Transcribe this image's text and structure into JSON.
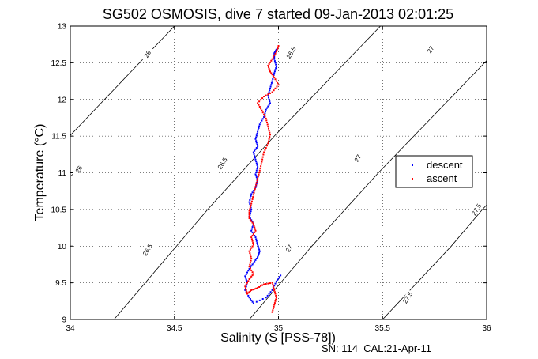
{
  "chart_data": {
    "type": "scatter",
    "title": "SG502 OSMOSIS, dive 7 started 09-Jan-2013 02:01:25",
    "xlabel": "Salinity (S [PSS-78])",
    "ylabel": "Temperature (°C)",
    "xlim": [
      34,
      36
    ],
    "ylim": [
      9,
      13
    ],
    "xticks": [
      34,
      34.5,
      35,
      35.5,
      36
    ],
    "xtick_labels": [
      "34",
      "34.5",
      "35",
      "35.5",
      "36"
    ],
    "yticks": [
      9,
      9.5,
      10,
      10.5,
      11,
      11.5,
      12,
      12.5,
      13
    ],
    "ytick_labels": [
      "9",
      "9.5",
      "10",
      "10.5",
      "11",
      "11.5",
      "12",
      "12.5",
      "13"
    ],
    "grid": true,
    "legend_position": "right",
    "footer": "SN: 114  CAL:21-Apr-11",
    "isopycnals": [
      {
        "label": "26",
        "points": [
          [
            34.0,
            11.51
          ],
          [
            34.5,
            13.0
          ]
        ],
        "label_at": [
          34.37,
          12.62
        ]
      },
      {
        "label": "26",
        "points": [
          [
            34.0,
            10.95
          ],
          [
            34.02,
            11.0
          ]
        ],
        "label_at": [
          34.04,
          11.05
        ]
      },
      {
        "label": "26.5",
        "points": [
          [
            34.21,
            9.0
          ],
          [
            34.51,
            10.0
          ],
          [
            34.66,
            10.5
          ],
          [
            34.82,
            11.0
          ],
          [
            34.98,
            11.5
          ],
          [
            35.15,
            12.0
          ],
          [
            35.32,
            12.5
          ],
          [
            35.49,
            13.0
          ]
        ],
        "label_at": [
          34.73,
          11.13
        ]
      },
      {
        "label": "26.5",
        "points": [],
        "label_at": [
          34.37,
          9.95
        ]
      },
      {
        "label": "26.5",
        "points": [],
        "label_at": [
          35.06,
          12.64
        ]
      },
      {
        "label": "27",
        "points": [
          [
            34.86,
            9.0
          ],
          [
            35.16,
            10.0
          ],
          [
            35.32,
            10.5
          ],
          [
            35.48,
            11.0
          ],
          [
            35.65,
            11.5
          ],
          [
            35.82,
            12.0
          ],
          [
            35.99,
            12.5
          ],
          [
            36.0,
            12.53
          ]
        ],
        "label_at": [
          35.38,
          11.2
        ]
      },
      {
        "label": "27",
        "points": [],
        "label_at": [
          35.05,
          9.97
        ]
      },
      {
        "label": "27",
        "points": [],
        "label_at": [
          35.73,
          12.68
        ]
      },
      {
        "label": "27.5",
        "points": [
          [
            35.5,
            9.0
          ],
          [
            35.83,
            10.0
          ],
          [
            35.98,
            10.5
          ],
          [
            36.0,
            10.56
          ]
        ],
        "label_at": [
          35.62,
          9.3
        ]
      },
      {
        "label": "27.5",
        "points": [],
        "label_at": [
          35.95,
          10.5
        ]
      }
    ],
    "series": [
      {
        "name": "descent",
        "color": "#0000ff",
        "points": [
          [
            34.99,
            12.68
          ],
          [
            34.98,
            12.63
          ],
          [
            34.98,
            12.55
          ],
          [
            34.99,
            12.45
          ],
          [
            34.98,
            12.36
          ],
          [
            34.97,
            12.25
          ],
          [
            34.96,
            12.15
          ],
          [
            34.95,
            12.05
          ],
          [
            34.96,
            11.95
          ],
          [
            34.94,
            11.86
          ],
          [
            34.93,
            11.76
          ],
          [
            34.91,
            11.66
          ],
          [
            34.9,
            11.56
          ],
          [
            34.89,
            11.46
          ],
          [
            34.9,
            11.36
          ],
          [
            34.88,
            11.28
          ],
          [
            34.89,
            11.18
          ],
          [
            34.9,
            11.08
          ],
          [
            34.89,
            10.98
          ],
          [
            34.9,
            10.9
          ],
          [
            34.89,
            10.8
          ],
          [
            34.87,
            10.71
          ],
          [
            34.86,
            10.6
          ],
          [
            34.87,
            10.5
          ],
          [
            34.86,
            10.4
          ],
          [
            34.88,
            10.31
          ],
          [
            34.87,
            10.21
          ],
          [
            34.89,
            10.12
          ],
          [
            34.9,
            10.02
          ],
          [
            34.91,
            9.93
          ],
          [
            34.9,
            9.85
          ],
          [
            34.88,
            9.77
          ],
          [
            34.86,
            9.69
          ],
          [
            34.84,
            9.59
          ],
          [
            34.85,
            9.5
          ],
          [
            34.84,
            9.4
          ],
          [
            34.86,
            9.3
          ],
          [
            34.88,
            9.22
          ],
          [
            34.94,
            9.3
          ],
          [
            34.97,
            9.4
          ],
          [
            34.99,
            9.52
          ],
          [
            35.01,
            9.6
          ]
        ]
      },
      {
        "name": "ascent",
        "color": "#ff0000",
        "points": [
          [
            34.97,
            9.1
          ],
          [
            34.98,
            9.2
          ],
          [
            34.99,
            9.3
          ],
          [
            34.98,
            9.4
          ],
          [
            34.97,
            9.5
          ],
          [
            34.93,
            9.48
          ],
          [
            34.9,
            9.43
          ],
          [
            34.87,
            9.4
          ],
          [
            34.85,
            9.35
          ],
          [
            34.84,
            9.45
          ],
          [
            34.86,
            9.55
          ],
          [
            34.88,
            9.62
          ],
          [
            34.86,
            9.72
          ],
          [
            34.87,
            9.83
          ],
          [
            34.86,
            9.93
          ],
          [
            34.88,
            10.02
          ],
          [
            34.87,
            10.12
          ],
          [
            34.89,
            10.21
          ],
          [
            34.88,
            10.3
          ],
          [
            34.86,
            10.38
          ],
          [
            34.86,
            10.48
          ],
          [
            34.87,
            10.58
          ],
          [
            34.88,
            10.7
          ],
          [
            34.89,
            10.81
          ],
          [
            34.9,
            10.92
          ],
          [
            34.91,
            11.03
          ],
          [
            34.92,
            11.15
          ],
          [
            34.93,
            11.28
          ],
          [
            34.95,
            11.4
          ],
          [
            34.96,
            11.52
          ],
          [
            34.95,
            11.63
          ],
          [
            34.94,
            11.74
          ],
          [
            34.92,
            11.85
          ],
          [
            34.9,
            11.95
          ],
          [
            34.93,
            12.04
          ],
          [
            34.97,
            12.1
          ],
          [
            35.0,
            12.2
          ],
          [
            34.98,
            12.3
          ],
          [
            34.96,
            12.38
          ],
          [
            34.95,
            12.46
          ],
          [
            34.97,
            12.55
          ],
          [
            34.99,
            12.65
          ],
          [
            35.0,
            12.73
          ]
        ]
      }
    ]
  }
}
